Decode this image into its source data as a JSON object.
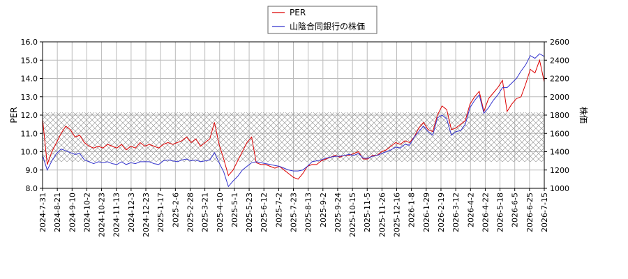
{
  "chart_data": {
    "type": "line",
    "ylabel_left": "PER",
    "ylabel_right": "株価",
    "ylim_left": [
      8.0,
      16.0
    ],
    "ylim_right": [
      1000,
      2600
    ],
    "yticks_left": [
      "8.0",
      "9.0",
      "10.0",
      "11.0",
      "12.0",
      "13.0",
      "14.0",
      "15.0",
      "16.0"
    ],
    "yticks_right": [
      "1000",
      "1200",
      "1400",
      "1600",
      "1800",
      "2000",
      "2200",
      "2400",
      "2600"
    ],
    "xticks": [
      "2024-7-31",
      "2024-8-21",
      "2024-9-10",
      "2024-10-2",
      "2024-10-23",
      "2024-11-13",
      "2024-12-3",
      "2024-12-23",
      "2025-1-17",
      "2025-2-6",
      "2025-2-28",
      "2025-3-21",
      "2025-4-10",
      "2025-5-1",
      "2025-5-23",
      "2025-6-12",
      "2025-7-2",
      "2025-7-23",
      "2025-8-13",
      "2025-9-2",
      "2025-9-24",
      "2025-10-15",
      "2025-11-5",
      "2025-11-26",
      "2025-12-16",
      "2026-1-8",
      "2026-1-29",
      "2026-2-19",
      "2026-3-12",
      "2026-4-2",
      "2026-4-22",
      "2026-5-18",
      "2026-6-5",
      "2026-6-25",
      "2026-7-15"
    ],
    "grid": true,
    "legend_position": "top-center",
    "shaded_band_right": [
      1290,
      1830
    ],
    "series": [
      {
        "name": "PER",
        "axis": "left",
        "color": "#dd0000",
        "values": [
          [
            0,
            11.8
          ],
          [
            1,
            9.3
          ],
          [
            2,
            10.0
          ],
          [
            3,
            10.5
          ],
          [
            4,
            11.0
          ],
          [
            5,
            11.4
          ],
          [
            6,
            11.2
          ],
          [
            7,
            10.8
          ],
          [
            8,
            10.9
          ],
          [
            9,
            10.5
          ],
          [
            10,
            10.3
          ],
          [
            11,
            10.2
          ],
          [
            12,
            10.3
          ],
          [
            13,
            10.2
          ],
          [
            14,
            10.4
          ],
          [
            15,
            10.3
          ],
          [
            16,
            10.2
          ],
          [
            17,
            10.4
          ],
          [
            18,
            10.1
          ],
          [
            19,
            10.3
          ],
          [
            20,
            10.2
          ],
          [
            21,
            10.5
          ],
          [
            22,
            10.3
          ],
          [
            23,
            10.4
          ],
          [
            24,
            10.3
          ],
          [
            25,
            10.2
          ],
          [
            26,
            10.4
          ],
          [
            27,
            10.5
          ],
          [
            28,
            10.4
          ],
          [
            29,
            10.5
          ],
          [
            30,
            10.6
          ],
          [
            31,
            10.8
          ],
          [
            32,
            10.5
          ],
          [
            33,
            10.7
          ],
          [
            34,
            10.3
          ],
          [
            35,
            10.5
          ],
          [
            36,
            10.7
          ],
          [
            37,
            11.6
          ],
          [
            38,
            10.4
          ],
          [
            39,
            9.6
          ],
          [
            40,
            8.7
          ],
          [
            41,
            9.0
          ],
          [
            42,
            9.5
          ],
          [
            43,
            10.0
          ],
          [
            44,
            10.5
          ],
          [
            45,
            10.8
          ],
          [
            46,
            9.4
          ],
          [
            47,
            9.3
          ],
          [
            48,
            9.3
          ],
          [
            49,
            9.2
          ],
          [
            50,
            9.1
          ],
          [
            51,
            9.2
          ],
          [
            52,
            9.0
          ],
          [
            53,
            8.8
          ],
          [
            54,
            8.6
          ],
          [
            55,
            8.5
          ],
          [
            56,
            8.8
          ],
          [
            57,
            9.2
          ],
          [
            58,
            9.3
          ],
          [
            59,
            9.3
          ],
          [
            60,
            9.5
          ],
          [
            61,
            9.6
          ],
          [
            62,
            9.7
          ],
          [
            63,
            9.8
          ],
          [
            64,
            9.7
          ],
          [
            65,
            9.8
          ],
          [
            66,
            9.8
          ],
          [
            67,
            9.9
          ],
          [
            68,
            10.0
          ],
          [
            69,
            9.6
          ],
          [
            70,
            9.6
          ],
          [
            71,
            9.8
          ],
          [
            72,
            9.8
          ],
          [
            73,
            10.0
          ],
          [
            74,
            10.1
          ],
          [
            75,
            10.3
          ],
          [
            76,
            10.5
          ],
          [
            77,
            10.4
          ],
          [
            78,
            10.6
          ],
          [
            79,
            10.5
          ],
          [
            80,
            10.8
          ],
          [
            81,
            11.3
          ],
          [
            82,
            11.6
          ],
          [
            83,
            11.2
          ],
          [
            84,
            11.1
          ],
          [
            85,
            12.0
          ],
          [
            86,
            12.5
          ],
          [
            87,
            12.3
          ],
          [
            88,
            11.2
          ],
          [
            89,
            11.3
          ],
          [
            90,
            11.5
          ],
          [
            91,
            11.7
          ],
          [
            92,
            12.6
          ],
          [
            93,
            13.0
          ],
          [
            94,
            13.3
          ],
          [
            95,
            12.2
          ],
          [
            96,
            12.9
          ],
          [
            97,
            13.2
          ],
          [
            98,
            13.5
          ],
          [
            99,
            13.9
          ],
          [
            100,
            12.2
          ],
          [
            101,
            12.6
          ],
          [
            102,
            12.9
          ],
          [
            103,
            13.0
          ],
          [
            104,
            13.7
          ],
          [
            105,
            14.5
          ],
          [
            106,
            14.3
          ],
          [
            107,
            15.0
          ],
          [
            108,
            13.8
          ]
        ]
      },
      {
        "name": "山陰合同銀行の株価",
        "axis": "right",
        "color": "#3333cc",
        "values": [
          [
            0,
            1360
          ],
          [
            1,
            1200
          ],
          [
            2,
            1300
          ],
          [
            3,
            1380
          ],
          [
            4,
            1430
          ],
          [
            5,
            1410
          ],
          [
            6,
            1390
          ],
          [
            7,
            1370
          ],
          [
            8,
            1380
          ],
          [
            9,
            1310
          ],
          [
            10,
            1290
          ],
          [
            11,
            1270
          ],
          [
            12,
            1290
          ],
          [
            13,
            1280
          ],
          [
            14,
            1290
          ],
          [
            15,
            1270
          ],
          [
            16,
            1260
          ],
          [
            17,
            1290
          ],
          [
            18,
            1260
          ],
          [
            19,
            1280
          ],
          [
            20,
            1270
          ],
          [
            21,
            1290
          ],
          [
            22,
            1290
          ],
          [
            23,
            1290
          ],
          [
            24,
            1270
          ],
          [
            25,
            1260
          ],
          [
            26,
            1300
          ],
          [
            27,
            1310
          ],
          [
            28,
            1300
          ],
          [
            29,
            1290
          ],
          [
            30,
            1310
          ],
          [
            31,
            1320
          ],
          [
            32,
            1300
          ],
          [
            33,
            1310
          ],
          [
            34,
            1290
          ],
          [
            35,
            1300
          ],
          [
            36,
            1310
          ],
          [
            37,
            1390
          ],
          [
            38,
            1280
          ],
          [
            39,
            1180
          ],
          [
            40,
            1020
          ],
          [
            41,
            1080
          ],
          [
            42,
            1130
          ],
          [
            43,
            1200
          ],
          [
            44,
            1240
          ],
          [
            45,
            1280
          ],
          [
            46,
            1290
          ],
          [
            47,
            1280
          ],
          [
            48,
            1270
          ],
          [
            49,
            1260
          ],
          [
            50,
            1250
          ],
          [
            51,
            1240
          ],
          [
            52,
            1220
          ],
          [
            53,
            1200
          ],
          [
            54,
            1190
          ],
          [
            55,
            1190
          ],
          [
            56,
            1200
          ],
          [
            57,
            1240
          ],
          [
            58,
            1290
          ],
          [
            59,
            1300
          ],
          [
            60,
            1310
          ],
          [
            61,
            1330
          ],
          [
            62,
            1340
          ],
          [
            63,
            1350
          ],
          [
            64,
            1350
          ],
          [
            65,
            1360
          ],
          [
            66,
            1370
          ],
          [
            67,
            1360
          ],
          [
            68,
            1380
          ],
          [
            69,
            1330
          ],
          [
            70,
            1330
          ],
          [
            71,
            1350
          ],
          [
            72,
            1360
          ],
          [
            73,
            1380
          ],
          [
            74,
            1400
          ],
          [
            75,
            1420
          ],
          [
            76,
            1450
          ],
          [
            77,
            1440
          ],
          [
            78,
            1480
          ],
          [
            79,
            1470
          ],
          [
            80,
            1560
          ],
          [
            81,
            1620
          ],
          [
            82,
            1680
          ],
          [
            83,
            1620
          ],
          [
            84,
            1580
          ],
          [
            85,
            1770
          ],
          [
            86,
            1800
          ],
          [
            87,
            1760
          ],
          [
            88,
            1580
          ],
          [
            89,
            1620
          ],
          [
            90,
            1630
          ],
          [
            91,
            1700
          ],
          [
            92,
            1880
          ],
          [
            93,
            1960
          ],
          [
            94,
            2020
          ],
          [
            95,
            1820
          ],
          [
            96,
            1880
          ],
          [
            97,
            1960
          ],
          [
            98,
            2020
          ],
          [
            99,
            2100
          ],
          [
            100,
            2100
          ],
          [
            101,
            2150
          ],
          [
            102,
            2200
          ],
          [
            103,
            2280
          ],
          [
            104,
            2350
          ],
          [
            105,
            2450
          ],
          [
            106,
            2420
          ],
          [
            107,
            2470
          ],
          [
            108,
            2440
          ]
        ]
      }
    ]
  },
  "colors": {
    "per": "#dd0000",
    "price": "#3333cc",
    "grid": "#bbbbbb",
    "band": "#888888"
  }
}
